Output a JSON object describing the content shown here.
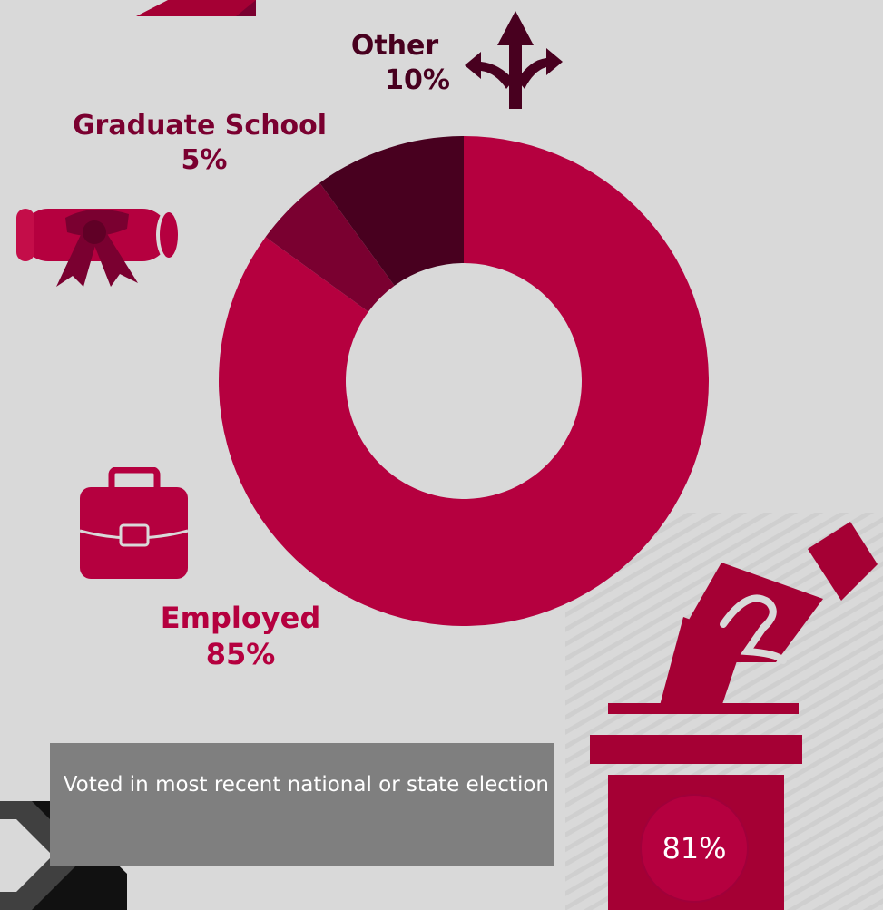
{
  "colors": {
    "background": "#d9d9d9",
    "employed": "#b5003f",
    "graduate": "#7a0030",
    "other": "#48001f",
    "caption_box": "#7f7f7f",
    "ballot": "#a50034"
  },
  "icons": {
    "other": "branching-arrows-icon",
    "graduate": "diploma-scroll-icon",
    "employed": "briefcase-icon",
    "voting": "ballot-box-hand-icon"
  },
  "chart_data": {
    "type": "pie",
    "donut": true,
    "categories": [
      "Employed",
      "Graduate School",
      "Other"
    ],
    "values": [
      85,
      5,
      10
    ],
    "value_labels": [
      "85%",
      "5%",
      "10%"
    ]
  },
  "voting": {
    "caption": "Voted in most recent national or state election",
    "value": "81%"
  }
}
